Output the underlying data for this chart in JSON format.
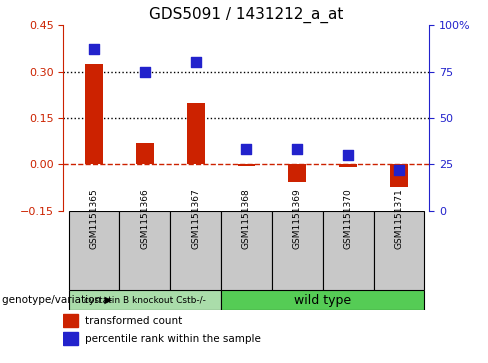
{
  "title": "GDS5091 / 1431212_a_at",
  "samples": [
    "GSM1151365",
    "GSM1151366",
    "GSM1151367",
    "GSM1151368",
    "GSM1151369",
    "GSM1151370",
    "GSM1151371"
  ],
  "red_values": [
    0.325,
    0.07,
    0.2,
    -0.005,
    -0.058,
    -0.01,
    -0.075
  ],
  "blue_values": [
    87,
    75,
    80,
    33,
    33,
    30,
    22
  ],
  "ylim_left": [
    -0.15,
    0.45
  ],
  "ylim_right": [
    0,
    100
  ],
  "yticks_left": [
    -0.15,
    0.0,
    0.15,
    0.3,
    0.45
  ],
  "yticks_right": [
    0,
    25,
    50,
    75,
    100
  ],
  "red_color": "#cc2200",
  "blue_color": "#2222cc",
  "zero_line_color": "#cc2200",
  "dotted_line_color": "#000000",
  "group1_label": "cystatin B knockout Cstb-/-",
  "group2_label": "wild type",
  "group1_color": "#aaddaa",
  "group2_color": "#55cc55",
  "group1_samples": 3,
  "group2_samples": 4,
  "legend1": "transformed count",
  "legend2": "percentile rank within the sample",
  "genotype_label": "genotype/variation",
  "bg_color": "#c8c8c8",
  "bar_width": 0.35,
  "blue_marker_size": 60
}
